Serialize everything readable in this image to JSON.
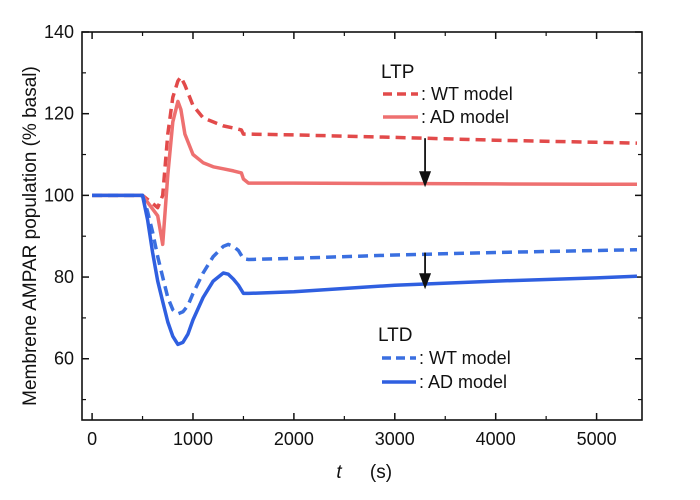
{
  "chart_data": {
    "type": "line",
    "title": "",
    "xlabel_var": "t",
    "xlabel_unit": "(s)",
    "ylabel": "Membrene AMPAR population (% basal)",
    "xlim": [
      -100,
      5450
    ],
    "ylim": [
      45,
      140
    ],
    "xticks": [
      0,
      1000,
      2000,
      3000,
      4000,
      5000
    ],
    "yticks": [
      60,
      80,
      100,
      120,
      140
    ],
    "legend_groups": [
      {
        "title": "LTP",
        "entries": [
          {
            "label": ": WT model",
            "series": "LTP-WT"
          },
          {
            "label": ": AD model",
            "series": "LTP-AD"
          }
        ]
      },
      {
        "title": "LTD",
        "entries": [
          {
            "label": ": WT model",
            "series": "LTD-WT"
          },
          {
            "label": ": AD model",
            "series": "LTD-AD"
          }
        ]
      }
    ],
    "series": [
      {
        "name": "LTP-WT",
        "color": "#e24a4a",
        "dash": true,
        "x": [
          0,
          500,
          650,
          700,
          750,
          800,
          850,
          880,
          920,
          1000,
          1100,
          1200,
          1300,
          1400,
          1480,
          1500,
          1550,
          2000,
          3000,
          4000,
          5000,
          5400
        ],
        "y": [
          100,
          100,
          97,
          100,
          115,
          124,
          128,
          129,
          127,
          122,
          119,
          118,
          117,
          116.5,
          116,
          115,
          115,
          114.8,
          114.2,
          113.5,
          113.0,
          112.8
        ]
      },
      {
        "name": "LTP-AD",
        "color": "#ee7070",
        "dash": false,
        "x": [
          0,
          500,
          650,
          700,
          750,
          800,
          850,
          880,
          920,
          1000,
          1100,
          1200,
          1300,
          1400,
          1480,
          1500,
          1550,
          2000,
          3000,
          4000,
          5000,
          5400
        ],
        "y": [
          100,
          100,
          95,
          88,
          105,
          118,
          123,
          121,
          115,
          110,
          108,
          107,
          106.5,
          106,
          105.5,
          104,
          103,
          103,
          102.9,
          102.8,
          102.7,
          102.7
        ]
      },
      {
        "name": "LTD-WT",
        "color": "#3a6fe0",
        "dash": true,
        "x": [
          0,
          500,
          550,
          600,
          650,
          700,
          750,
          800,
          850,
          900,
          950,
          1000,
          1100,
          1200,
          1300,
          1350,
          1400,
          1450,
          1500,
          1550,
          2000,
          3000,
          4000,
          5000,
          5400
        ],
        "y": [
          100,
          100,
          96,
          91,
          85,
          80,
          75,
          72,
          71,
          71.5,
          73,
          76,
          81,
          85,
          87.5,
          88,
          87.5,
          86.5,
          84.5,
          84.3,
          84.6,
          85.4,
          86.0,
          86.5,
          86.7
        ]
      },
      {
        "name": "LTD-AD",
        "color": "#2f5fe0",
        "dash": false,
        "x": [
          0,
          500,
          550,
          600,
          650,
          700,
          750,
          800,
          850,
          900,
          950,
          1000,
          1100,
          1200,
          1300,
          1350,
          1400,
          1450,
          1500,
          1550,
          2000,
          3000,
          4000,
          5000,
          5400
        ],
        "y": [
          100,
          100,
          94,
          86,
          79,
          74,
          69,
          65.5,
          63.5,
          64,
          66,
          69.5,
          75,
          79,
          81,
          80.7,
          79.5,
          78,
          76,
          76,
          76.4,
          78.0,
          79.0,
          79.8,
          80.2
        ]
      }
    ],
    "annotations": [
      {
        "type": "arrow",
        "x": 3300,
        "y_from": 114,
        "y_to": 102,
        "color": "#111111"
      },
      {
        "type": "arrow",
        "x": 3300,
        "y_from": 86,
        "y_to": 77,
        "color": "#111111"
      }
    ]
  }
}
